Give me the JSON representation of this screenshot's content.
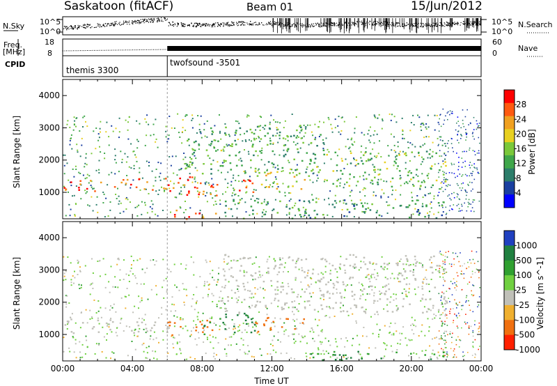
{
  "header": {
    "station": "Saskatoon (fitACF)",
    "beam": "Beam 01",
    "date": "15/Jun/2012"
  },
  "panels": {
    "nsky_label": "N.Sky",
    "nsky_ticks": [
      "10^5",
      "10^0"
    ],
    "nsearch_label": "N.Search",
    "nsearch_ticks": [
      "10^5",
      "10^0"
    ],
    "freq_label_1": "Freq.",
    "freq_label_2": "[MHz]",
    "freq_ticks": [
      "18",
      "8"
    ],
    "nave_label": "Nave",
    "nave_ticks": [
      "60",
      "0"
    ],
    "cpid_label": "CPID",
    "cpid_segments": [
      {
        "label": "themis 3300",
        "start_hour": 0,
        "end_hour": 6
      },
      {
        "label": "twofsound -3501",
        "start_hour": 6,
        "end_hour": 24
      }
    ]
  },
  "colors": {
    "ground_scatter": "#c0c0b8",
    "power_scale": [
      "#0000ff",
      "#1a3fa0",
      "#2c7d6a",
      "#3fa64a",
      "#7ac83a",
      "#e8d020",
      "#f0a020",
      "#ff5a10",
      "#ff0000"
    ],
    "velocity_scale": [
      "#2040c0",
      "#208040",
      "#30a030",
      "#70d040",
      "#c0c0b8",
      "#f0b030",
      "#f07010",
      "#ff2000",
      "#ff0000"
    ]
  },
  "chart_data": [
    {
      "type": "heatmap",
      "name": "power",
      "xlabel": "",
      "ylabel": "Slant Range [km]",
      "xlim": [
        0,
        24
      ],
      "ylim": [
        180,
        4500
      ],
      "yticks": [
        1000,
        2000,
        3000,
        4000
      ],
      "colorbar": {
        "label": "Power [dB]",
        "ticks": [
          "28",
          "24",
          "20",
          "16",
          "12",
          "8",
          "4"
        ],
        "range": [
          0,
          30
        ]
      },
      "regions": [
        {
          "t0": 0,
          "t1": 6,
          "r0": 1050,
          "r1": 1450,
          "value": 26
        },
        {
          "t0": 6,
          "t1": 11,
          "r0": 900,
          "r1": 1500,
          "value": 28
        },
        {
          "t0": 11,
          "t1": 14,
          "r0": 1100,
          "r1": 1700,
          "value": 20
        },
        {
          "t0": 14,
          "t1": 22,
          "r0": 1200,
          "r1": 2300,
          "value": 14
        },
        {
          "t0": 7,
          "t1": 15,
          "r0": 1600,
          "r1": 3100,
          "value": 12
        },
        {
          "t0": 6,
          "t1": 9,
          "r0": 200,
          "r1": 500,
          "value": 26
        },
        {
          "t0": 9,
          "t1": 22,
          "r0": 200,
          "r1": 800,
          "value": 10
        }
      ]
    },
    {
      "type": "heatmap",
      "name": "velocity",
      "xlabel": "Time UT",
      "ylabel": "Slant Range [km]",
      "xlim": [
        0,
        24
      ],
      "ylim": [
        180,
        4500
      ],
      "yticks": [
        1000,
        2000,
        3000,
        4000
      ],
      "xticks": [
        "00:00",
        "04:00",
        "08:00",
        "12:00",
        "16:00",
        "20:00",
        "00:00"
      ],
      "colorbar": {
        "label": "Velocity [m s^-1]",
        "ticks": [
          "1000",
          "500",
          "100",
          "25",
          "-25",
          "-100",
          "-500",
          "-1000"
        ]
      },
      "regions": [
        {
          "t0": 0,
          "t1": 6,
          "r0": 1050,
          "r1": 1500,
          "value": 0
        },
        {
          "t0": 6,
          "t1": 9,
          "r0": 1000,
          "r1": 1500,
          "value": -150
        },
        {
          "t0": 8,
          "t1": 11,
          "r0": 1000,
          "r1": 1700,
          "value": 150
        },
        {
          "t0": 11,
          "t1": 14,
          "r0": 1100,
          "r1": 1600,
          "value": -200
        },
        {
          "t0": 9,
          "t1": 22,
          "r0": 1700,
          "r1": 3500,
          "value": 0
        },
        {
          "t0": 14,
          "t1": 22,
          "r0": 200,
          "r1": 500,
          "value": 100
        }
      ]
    }
  ]
}
